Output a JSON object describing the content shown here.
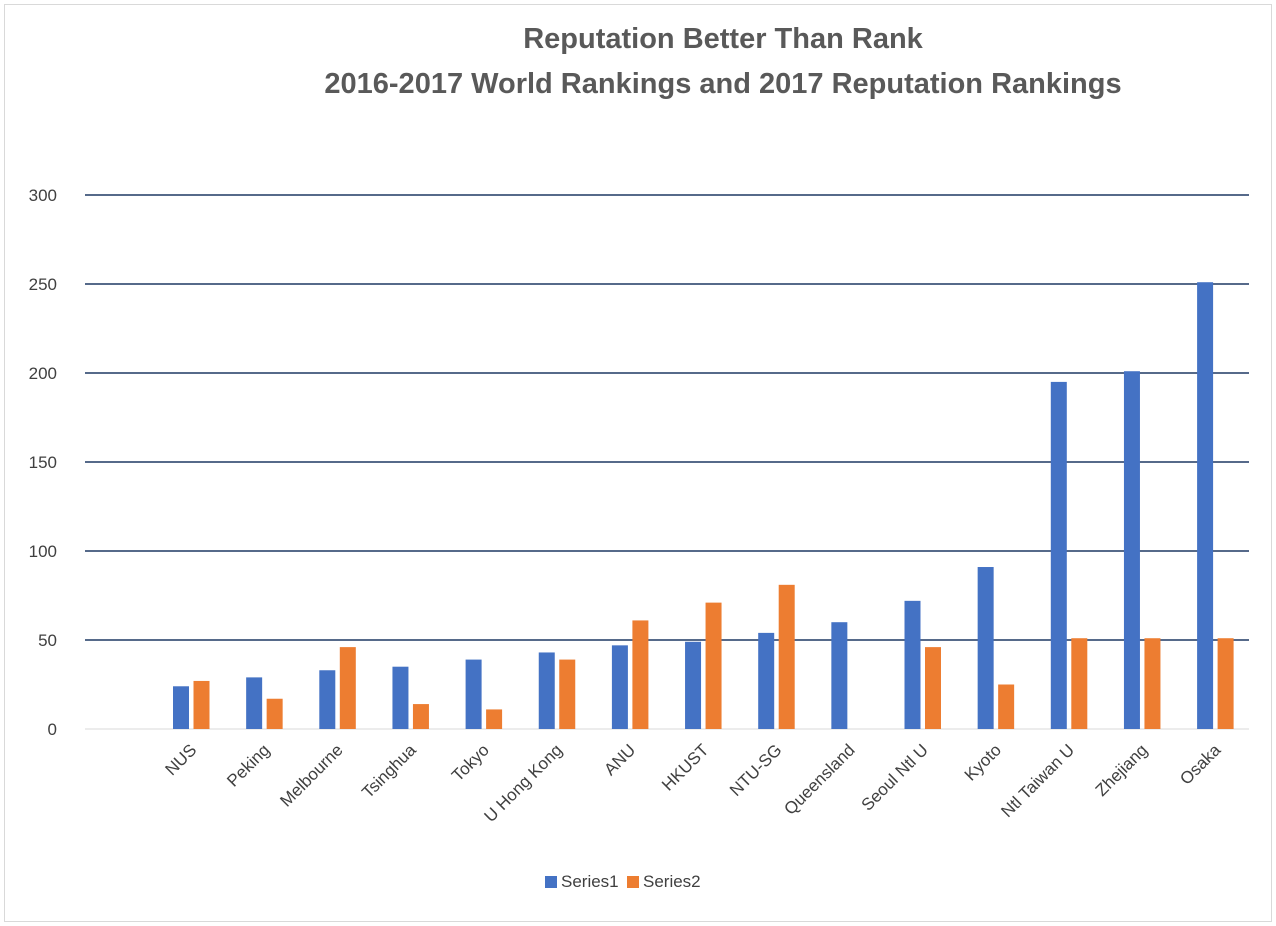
{
  "chart_data": {
    "type": "bar",
    "title": "Reputation Better Than Rank",
    "subtitle": "2016-2017 World Rankings and 2017 Reputation Rankings",
    "xlabel": "",
    "ylabel": "",
    "ylim": [
      0,
      300
    ],
    "yticks": [
      0,
      50,
      100,
      150,
      200,
      250,
      300
    ],
    "grid": true,
    "legend_position": "bottom",
    "categories": [
      "NUS",
      "Peking",
      "Melbourne",
      "Tsinghua",
      "Tokyo",
      "U Hong Kong",
      "ANU",
      "HKUST",
      "NTU-SG",
      "Queensland",
      "Seoul Ntl U",
      "Kyoto",
      "Ntl Taiwan U",
      "Zhejiang",
      "Osaka"
    ],
    "series": [
      {
        "name": "Series1",
        "color": "#4472c4",
        "values": [
          24,
          29,
          33,
          35,
          39,
          43,
          47,
          49,
          54,
          60,
          72,
          91,
          195,
          201,
          251
        ]
      },
      {
        "name": "Series2",
        "color": "#ed7d31",
        "values": [
          27,
          17,
          46,
          14,
          11,
          39,
          61,
          71,
          81,
          null,
          46,
          25,
          51,
          51,
          51
        ]
      }
    ]
  }
}
